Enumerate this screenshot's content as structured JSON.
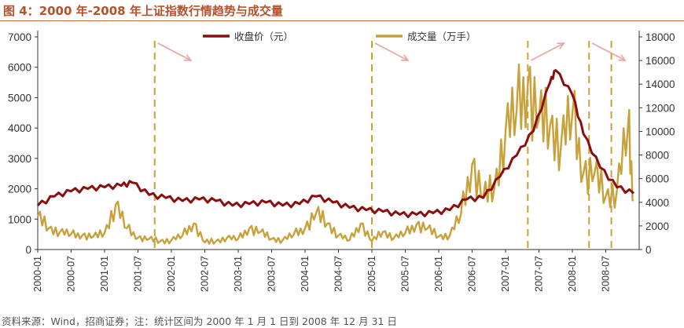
{
  "header": {
    "title": "图 4：2000 年-2008 年上证指数行情趋势与成交量"
  },
  "footer": {
    "source": "资料来源：Wind，招商证券；注：统计区间为 2000 年 1 月 1 日到 2008 年 12 月 31 日"
  },
  "colors": {
    "close": "#8b0e0e",
    "volume": "#c8a13a",
    "marker": "#c8a13a",
    "arrow": "#e8a5a0",
    "title": "#b5522c"
  },
  "chart_data": {
    "type": "line",
    "title": "图 4：2000 年-2008 年上证指数行情趋势与成交量",
    "x_ticks": [
      "2000-01",
      "2000-07",
      "2001-01",
      "2001-07",
      "2002-01",
      "2002-07",
      "2003-01",
      "2003-07",
      "2004-01",
      "2004-07",
      "2005-01",
      "2005-07",
      "2006-01",
      "2006-07",
      "2007-01",
      "2007-07",
      "2008-01",
      "2008-07"
    ],
    "y_left": {
      "lim": [
        0,
        7000
      ],
      "ticks": [
        0,
        1000,
        2000,
        3000,
        4000,
        5000,
        6000,
        7000
      ]
    },
    "y_right": {
      "lim": [
        0,
        18000
      ],
      "ticks": [
        0,
        2000,
        4000,
        6000,
        8000,
        10000,
        12000,
        14000,
        16000,
        18000
      ]
    },
    "legend_position": "top",
    "series": [
      {
        "name": "收盘价（元）",
        "axis": "left",
        "x": [
          "2000-01",
          "2000-04",
          "2000-07",
          "2000-10",
          "2001-01",
          "2001-04",
          "2001-06",
          "2001-09",
          "2001-12",
          "2002-03",
          "2002-06",
          "2002-09",
          "2002-12",
          "2003-03",
          "2003-06",
          "2003-09",
          "2003-12",
          "2004-03",
          "2004-06",
          "2004-09",
          "2004-12",
          "2005-03",
          "2005-06",
          "2005-09",
          "2005-12",
          "2006-03",
          "2006-06",
          "2006-09",
          "2006-12",
          "2007-03",
          "2007-06",
          "2007-09",
          "2007-10",
          "2008-01",
          "2008-03",
          "2008-06",
          "2008-09",
          "2008-12"
        ],
        "values": [
          1450,
          1750,
          1920,
          2000,
          2050,
          2100,
          2200,
          1800,
          1700,
          1600,
          1650,
          1600,
          1450,
          1500,
          1550,
          1450,
          1500,
          1750,
          1550,
          1380,
          1300,
          1250,
          1150,
          1150,
          1200,
          1300,
          1650,
          1700,
          2400,
          3100,
          3900,
          5500,
          5900,
          5100,
          3800,
          2700,
          2050,
          1850
        ]
      },
      {
        "name": "成交量（万手）",
        "axis": "right",
        "x": [
          "2000-01",
          "2000-03",
          "2000-05",
          "2000-07",
          "2000-09",
          "2000-11",
          "2001-01",
          "2001-03",
          "2001-05",
          "2001-07",
          "2001-09",
          "2001-11",
          "2002-01",
          "2002-03",
          "2002-05",
          "2002-07",
          "2002-09",
          "2002-11",
          "2003-01",
          "2003-03",
          "2003-05",
          "2003-07",
          "2003-09",
          "2003-11",
          "2004-01",
          "2004-03",
          "2004-05",
          "2004-07",
          "2004-09",
          "2004-11",
          "2005-01",
          "2005-03",
          "2005-05",
          "2005-07",
          "2005-09",
          "2005-11",
          "2006-01",
          "2006-03",
          "2006-05",
          "2006-07",
          "2006-09",
          "2006-11",
          "2007-01",
          "2007-03",
          "2007-05",
          "2007-07",
          "2007-09",
          "2007-11",
          "2008-01",
          "2008-03",
          "2008-05",
          "2008-07",
          "2008-09",
          "2008-11",
          "2008-12"
        ],
        "values": [
          2800,
          1800,
          1500,
          1300,
          1200,
          1100,
          1400,
          3800,
          1800,
          1000,
          900,
          700,
          800,
          1200,
          2200,
          600,
          700,
          1000,
          900,
          1800,
          1500,
          900,
          800,
          1300,
          1800,
          3100,
          2200,
          1200,
          800,
          2200,
          700,
          1500,
          1000,
          1400,
          2100,
          1800,
          1100,
          1200,
          3000,
          7200,
          4500,
          5200,
          10000,
          11800,
          14000,
          11000,
          10500,
          9000,
          11500,
          6500,
          6500,
          4500,
          5000,
          10500,
          4200
        ]
      }
    ]
  },
  "annotations": {
    "marker_dates": [
      "2001-10",
      "2005-01",
      "2007-05",
      "2008-04",
      "2008-08"
    ]
  }
}
